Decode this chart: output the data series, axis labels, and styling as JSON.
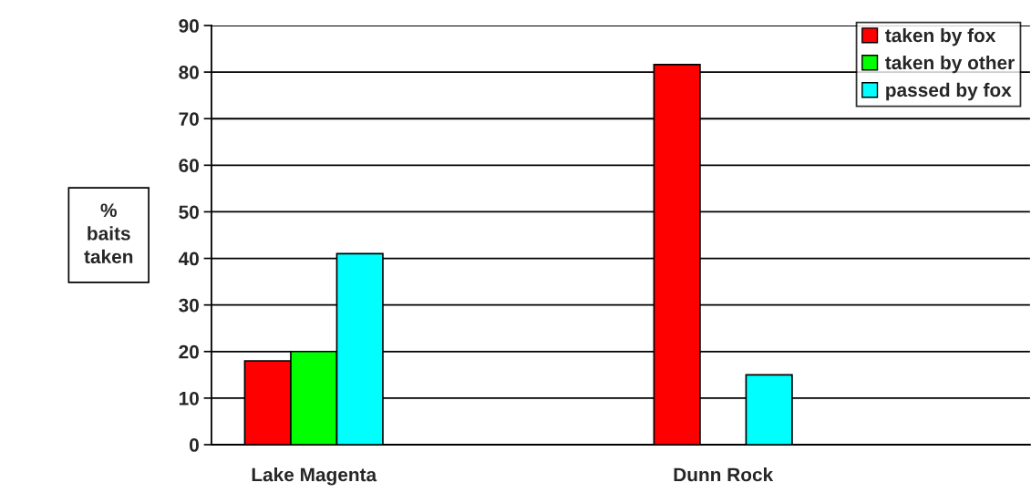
{
  "chart_data": {
    "type": "bar",
    "ylabel": "%\nbaits\ntaken",
    "categories": [
      "Lake Magenta",
      null,
      "Dunn Rock",
      null
    ],
    "series": [
      {
        "name": "taken by fox",
        "color": "#ff0000",
        "values": [
          18,
          null,
          81.6,
          null
        ]
      },
      {
        "name": "taken by other",
        "color": "#00ff00",
        "values": [
          20,
          null,
          null,
          null
        ]
      },
      {
        "name": "passed by fox",
        "color": "#00ffff",
        "values": [
          41,
          null,
          15,
          null
        ]
      }
    ],
    "ylim": [
      0,
      90
    ],
    "yticks": [
      0,
      10,
      20,
      30,
      40,
      50,
      60,
      70,
      80,
      90
    ],
    "grid": "y",
    "legend": "top right"
  }
}
